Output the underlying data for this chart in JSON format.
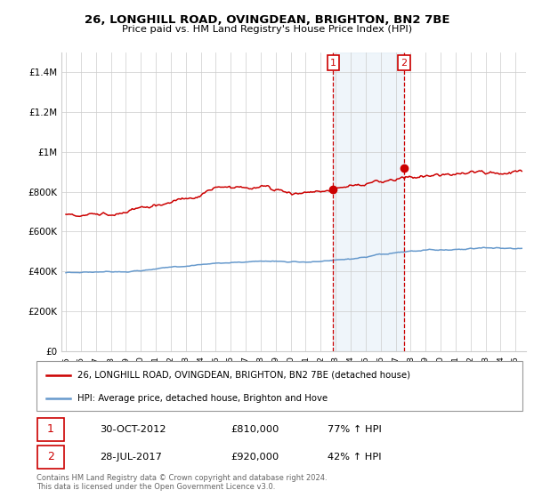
{
  "title": "26, LONGHILL ROAD, OVINGDEAN, BRIGHTON, BN2 7BE",
  "subtitle": "Price paid vs. HM Land Registry's House Price Index (HPI)",
  "legend_line1": "26, LONGHILL ROAD, OVINGDEAN, BRIGHTON, BN2 7BE (detached house)",
  "legend_line2": "HPI: Average price, detached house, Brighton and Hove",
  "annotation1_label": "1",
  "annotation1_date": "30-OCT-2012",
  "annotation1_price": "£810,000",
  "annotation1_hpi": "77% ↑ HPI",
  "annotation2_label": "2",
  "annotation2_date": "28-JUL-2017",
  "annotation2_price": "£920,000",
  "annotation2_hpi": "42% ↑ HPI",
  "footer1": "Contains HM Land Registry data © Crown copyright and database right 2024.",
  "footer2": "This data is licensed under the Open Government Licence v3.0.",
  "red_color": "#cc0000",
  "blue_color": "#6699cc",
  "shade_color": "#cce0f0",
  "background_color": "#ffffff",
  "grid_color": "#cccccc",
  "ylim": [
    0,
    1500000
  ],
  "yticks": [
    0,
    200000,
    400000,
    600000,
    800000,
    1000000,
    1200000,
    1400000
  ],
  "ytick_labels": [
    "£0",
    "£200K",
    "£400K",
    "£600K",
    "£800K",
    "£1M",
    "£1.2M",
    "£1.4M"
  ],
  "xmin": 1994.7,
  "xmax": 2025.7,
  "sale1_x": 2012.83,
  "sale1_y": 810000,
  "sale2_x": 2017.57,
  "sale2_y": 920000
}
